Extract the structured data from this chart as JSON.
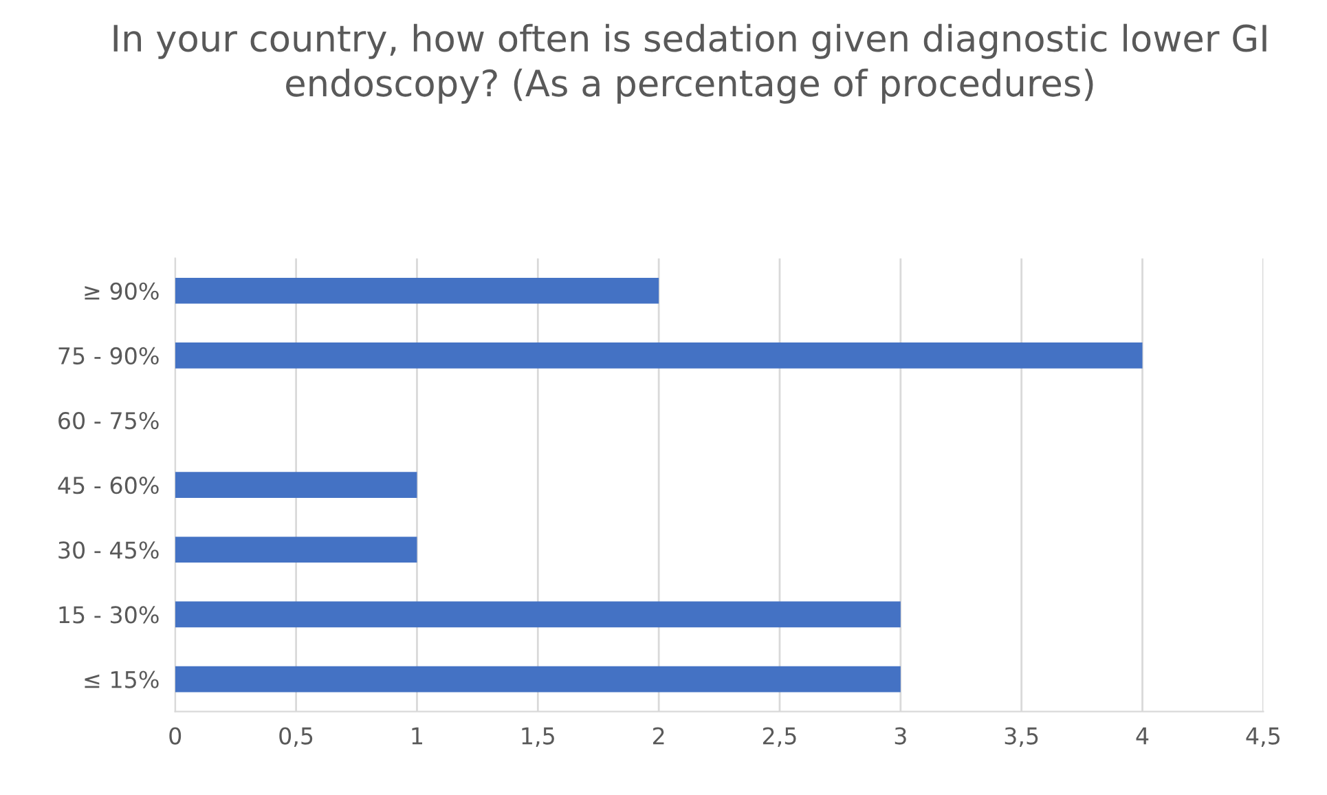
{
  "chart_data": {
    "type": "bar",
    "orientation": "horizontal",
    "title": "In your country, how often is sedation given diagnostic lower GI endoscopy? (As a percentage of procedures)",
    "categories": [
      "≥ 90%",
      "75 - 90%",
      "60 - 75%",
      "45 - 60%",
      "30 - 45%",
      "15 - 30%",
      "≤ 15%"
    ],
    "values": [
      2,
      4,
      0,
      1,
      1,
      3,
      3
    ],
    "color": "#4472c4",
    "xlim": [
      0,
      4.5
    ],
    "xticks": [
      0,
      {
        "value": 0.5,
        "label": "0,5"
      },
      1,
      {
        "value": 1.5,
        "label": "1,5"
      },
      2,
      {
        "value": 2.5,
        "label": "2,5"
      },
      3,
      {
        "value": 3.5,
        "label": "3,5"
      },
      4,
      {
        "value": 4.5,
        "label": "4,5"
      }
    ],
    "grid": "x",
    "legend": false
  }
}
